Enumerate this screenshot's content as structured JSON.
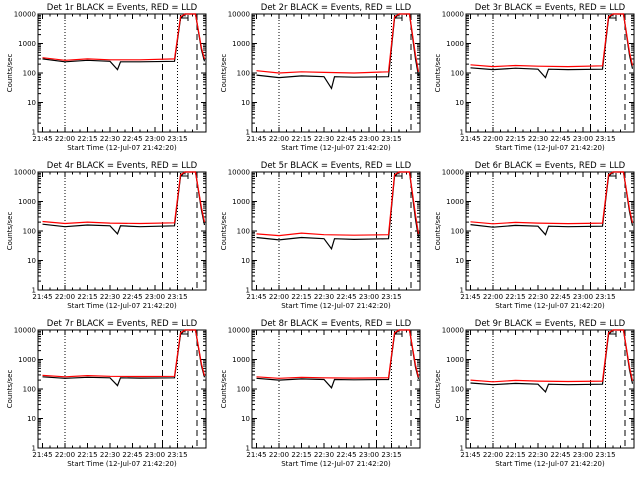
{
  "chart_data": [
    {
      "type": "line",
      "title": "Det 1r BLACK = Events, RED = LLD",
      "xlabel": "",
      "ylabel": "Counts/sec",
      "yscale": "log",
      "ylim": [
        1,
        10000
      ],
      "xticks": [
        "21:45",
        "22:00",
        "22:15",
        "22:30",
        "22:45",
        "23:00",
        "23:15"
      ],
      "series": [
        {
          "color": "#000000",
          "points": [
            [
              0,
              300
            ],
            [
              15,
              240
            ],
            [
              30,
              270
            ],
            [
              45,
              250
            ],
            [
              50,
              130
            ],
            [
              52,
              240
            ],
            [
              65,
              240
            ],
            [
              88,
              250
            ],
            [
              92,
              7000
            ],
            [
              95,
              11000
            ],
            [
              102,
              11000
            ],
            [
              106,
              600
            ],
            [
              108,
              250
            ]
          ]
        },
        {
          "color": "#ff0000",
          "points": [
            [
              0,
              330
            ],
            [
              15,
              270
            ],
            [
              30,
              300
            ],
            [
              45,
              280
            ],
            [
              65,
              280
            ],
            [
              88,
              300
            ],
            [
              92,
              8000
            ],
            [
              95,
              12000
            ],
            [
              102,
              12000
            ],
            [
              106,
              700
            ],
            [
              108,
              300
            ]
          ]
        }
      ]
    },
    {
      "type": "line",
      "title": "Det 2r BLACK = Events, RED = LLD",
      "xlabel": "",
      "ylabel": "Counts/sec",
      "yscale": "log",
      "ylim": [
        1,
        10000
      ],
      "xticks": [
        "21:45",
        "22:00",
        "22:15",
        "22:30",
        "22:45",
        "23:00",
        "23:15"
      ],
      "series": [
        {
          "color": "#000000",
          "points": [
            [
              0,
              85
            ],
            [
              15,
              70
            ],
            [
              30,
              80
            ],
            [
              45,
              75
            ],
            [
              50,
              30
            ],
            [
              52,
              75
            ],
            [
              65,
              72
            ],
            [
              88,
              75
            ],
            [
              92,
              7000
            ],
            [
              95,
              11000
            ],
            [
              102,
              11000
            ],
            [
              106,
              300
            ],
            [
              108,
              80
            ]
          ]
        },
        {
          "color": "#ff0000",
          "points": [
            [
              0,
              120
            ],
            [
              15,
              100
            ],
            [
              30,
              110
            ],
            [
              45,
              105
            ],
            [
              65,
              100
            ],
            [
              88,
              110
            ],
            [
              92,
              8000
            ],
            [
              95,
              12000
            ],
            [
              102,
              12000
            ],
            [
              106,
              400
            ],
            [
              108,
              110
            ]
          ]
        }
      ]
    },
    {
      "type": "line",
      "title": "Det 3r BLACK = Events, RED = LLD",
      "xlabel": "",
      "ylabel": "Counts/sec",
      "yscale": "log",
      "ylim": [
        1,
        10000
      ],
      "xticks": [
        "21:45",
        "22:00",
        "22:15",
        "22:30",
        "22:45",
        "23:00",
        "23:15"
      ],
      "series": [
        {
          "color": "#000000",
          "points": [
            [
              0,
              150
            ],
            [
              15,
              130
            ],
            [
              30,
              145
            ],
            [
              45,
              135
            ],
            [
              50,
              70
            ],
            [
              52,
              135
            ],
            [
              65,
              130
            ],
            [
              88,
              135
            ],
            [
              92,
              7000
            ],
            [
              95,
              11000
            ],
            [
              102,
              11000
            ],
            [
              106,
              400
            ],
            [
              108,
              140
            ]
          ]
        },
        {
          "color": "#ff0000",
          "points": [
            [
              0,
              190
            ],
            [
              15,
              165
            ],
            [
              30,
              180
            ],
            [
              45,
              170
            ],
            [
              65,
              165
            ],
            [
              88,
              175
            ],
            [
              92,
              8000
            ],
            [
              95,
              12000
            ],
            [
              102,
              12000
            ],
            [
              106,
              500
            ],
            [
              108,
              180
            ]
          ]
        }
      ]
    },
    {
      "type": "line",
      "title": "Det 4r BLACK = Events, RED = LLD",
      "xlabel": "",
      "ylabel": "Counts/sec",
      "yscale": "log",
      "ylim": [
        1,
        10000
      ],
      "xticks": [
        "21:45",
        "22:00",
        "22:15",
        "22:30",
        "22:45",
        "23:00",
        "23:15"
      ],
      "series": [
        {
          "color": "#000000",
          "points": [
            [
              0,
              170
            ],
            [
              15,
              140
            ],
            [
              30,
              160
            ],
            [
              45,
              150
            ],
            [
              50,
              80
            ],
            [
              52,
              150
            ],
            [
              65,
              140
            ],
            [
              88,
              150
            ],
            [
              92,
              7000
            ],
            [
              95,
              11000
            ],
            [
              102,
              11000
            ],
            [
              106,
              500
            ],
            [
              108,
              160
            ]
          ]
        },
        {
          "color": "#ff0000",
          "points": [
            [
              0,
              210
            ],
            [
              15,
              180
            ],
            [
              30,
              200
            ],
            [
              45,
              185
            ],
            [
              65,
              180
            ],
            [
              88,
              190
            ],
            [
              92,
              8000
            ],
            [
              95,
              12000
            ],
            [
              102,
              12000
            ],
            [
              106,
              600
            ],
            [
              108,
              200
            ]
          ]
        }
      ]
    },
    {
      "type": "line",
      "title": "Det 5r BLACK = Events, RED = LLD",
      "xlabel": "",
      "ylabel": "Counts/sec",
      "yscale": "log",
      "ylim": [
        1,
        10000
      ],
      "xticks": [
        "21:45",
        "22:00",
        "22:15",
        "22:30",
        "22:45",
        "23:00",
        "23:15"
      ],
      "series": [
        {
          "color": "#000000",
          "points": [
            [
              0,
              60
            ],
            [
              15,
              50
            ],
            [
              30,
              60
            ],
            [
              45,
              55
            ],
            [
              50,
              25
            ],
            [
              52,
              55
            ],
            [
              65,
              52
            ],
            [
              88,
              55
            ],
            [
              92,
              7000
            ],
            [
              95,
              11000
            ],
            [
              102,
              11000
            ],
            [
              106,
              250
            ],
            [
              108,
              60
            ]
          ]
        },
        {
          "color": "#ff0000",
          "points": [
            [
              0,
              80
            ],
            [
              15,
              70
            ],
            [
              30,
              85
            ],
            [
              45,
              75
            ],
            [
              65,
              72
            ],
            [
              88,
              75
            ],
            [
              92,
              8000
            ],
            [
              95,
              12000
            ],
            [
              102,
              12000
            ],
            [
              106,
              350
            ],
            [
              108,
              80
            ]
          ]
        }
      ]
    },
    {
      "type": "line",
      "title": "Det 6r BLACK = Events, RED = LLD",
      "xlabel": "",
      "ylabel": "Counts/sec",
      "yscale": "log",
      "ylim": [
        1,
        10000
      ],
      "xticks": [
        "21:45",
        "22:00",
        "22:15",
        "22:30",
        "22:45",
        "23:00",
        "23:15"
      ],
      "series": [
        {
          "color": "#000000",
          "points": [
            [
              0,
              165
            ],
            [
              15,
              135
            ],
            [
              30,
              155
            ],
            [
              45,
              145
            ],
            [
              50,
              75
            ],
            [
              52,
              145
            ],
            [
              65,
              140
            ],
            [
              88,
              145
            ],
            [
              92,
              7000
            ],
            [
              95,
              11000
            ],
            [
              102,
              11000
            ],
            [
              106,
              450
            ],
            [
              108,
              150
            ]
          ]
        },
        {
          "color": "#ff0000",
          "points": [
            [
              0,
              205
            ],
            [
              15,
              175
            ],
            [
              30,
              195
            ],
            [
              45,
              185
            ],
            [
              65,
              178
            ],
            [
              88,
              185
            ],
            [
              92,
              8000
            ],
            [
              95,
              12000
            ],
            [
              102,
              12000
            ],
            [
              106,
              550
            ],
            [
              108,
              190
            ]
          ]
        }
      ]
    },
    {
      "type": "line",
      "title": "Det 7r BLACK = Events, RED = LLD",
      "xlabel": "",
      "ylabel": "Counts/sec",
      "yscale": "log",
      "ylim": [
        1,
        10000
      ],
      "xticks": [
        "21:45",
        "22:00",
        "22:15",
        "22:30",
        "22:45",
        "23:00",
        "23:15"
      ],
      "series": [
        {
          "color": "#000000",
          "points": [
            [
              0,
              260
            ],
            [
              15,
              230
            ],
            [
              30,
              250
            ],
            [
              45,
              240
            ],
            [
              50,
              130
            ],
            [
              52,
              240
            ],
            [
              65,
              235
            ],
            [
              88,
              240
            ],
            [
              92,
              7000
            ],
            [
              95,
              11000
            ],
            [
              102,
              11000
            ],
            [
              106,
              600
            ],
            [
              108,
              250
            ]
          ]
        },
        {
          "color": "#ff0000",
          "points": [
            [
              0,
              290
            ],
            [
              15,
              260
            ],
            [
              30,
              285
            ],
            [
              45,
              270
            ],
            [
              65,
              265
            ],
            [
              88,
              270
            ],
            [
              92,
              8000
            ],
            [
              95,
              12000
            ],
            [
              102,
              12000
            ],
            [
              106,
              700
            ],
            [
              108,
              280
            ]
          ]
        }
      ]
    },
    {
      "type": "line",
      "title": "Det 8r BLACK = Events, RED = LLD",
      "xlabel": "",
      "ylabel": "Counts/sec",
      "yscale": "log",
      "ylim": [
        1,
        10000
      ],
      "xticks": [
        "21:45",
        "22:00",
        "22:15",
        "22:30",
        "22:45",
        "23:00",
        "23:15"
      ],
      "series": [
        {
          "color": "#000000",
          "points": [
            [
              0,
              230
            ],
            [
              15,
              200
            ],
            [
              30,
              220
            ],
            [
              45,
              210
            ],
            [
              50,
              110
            ],
            [
              52,
              210
            ],
            [
              65,
              205
            ],
            [
              88,
              210
            ],
            [
              92,
              7000
            ],
            [
              95,
              11000
            ],
            [
              102,
              11000
            ],
            [
              106,
              550
            ],
            [
              108,
              220
            ]
          ]
        },
        {
          "color": "#ff0000",
          "points": [
            [
              0,
              260
            ],
            [
              15,
              230
            ],
            [
              30,
              250
            ],
            [
              45,
              240
            ],
            [
              65,
              235
            ],
            [
              88,
              240
            ],
            [
              92,
              8000
            ],
            [
              95,
              12000
            ],
            [
              102,
              12000
            ],
            [
              106,
              650
            ],
            [
              108,
              250
            ]
          ]
        }
      ]
    },
    {
      "type": "line",
      "title": "Det 9r BLACK = Events, RED = LLD",
      "xlabel": "",
      "ylabel": "Counts/sec",
      "yscale": "log",
      "ylim": [
        1,
        10000
      ],
      "xticks": [
        "21:45",
        "22:00",
        "22:15",
        "22:30",
        "22:45",
        "23:00",
        "23:15"
      ],
      "series": [
        {
          "color": "#000000",
          "points": [
            [
              0,
              160
            ],
            [
              15,
              140
            ],
            [
              30,
              155
            ],
            [
              45,
              145
            ],
            [
              50,
              80
            ],
            [
              52,
              145
            ],
            [
              65,
              140
            ],
            [
              88,
              145
            ],
            [
              92,
              7000
            ],
            [
              95,
              11000
            ],
            [
              102,
              11000
            ],
            [
              106,
              450
            ],
            [
              108,
              150
            ]
          ]
        },
        {
          "color": "#ff0000",
          "points": [
            [
              0,
              200
            ],
            [
              15,
              175
            ],
            [
              30,
              195
            ],
            [
              45,
              185
            ],
            [
              65,
              180
            ],
            [
              88,
              185
            ],
            [
              92,
              8000
            ],
            [
              95,
              12000
            ],
            [
              102,
              12000
            ],
            [
              106,
              550
            ],
            [
              108,
              190
            ]
          ]
        }
      ]
    }
  ],
  "start_time_label": "Start Time (12-Jul-07 21:42:20)",
  "ytick_labels": [
    "1",
    "10",
    "100",
    "1000",
    "10000"
  ],
  "colors": {
    "events": "#000000",
    "lld": "#ff0000"
  }
}
